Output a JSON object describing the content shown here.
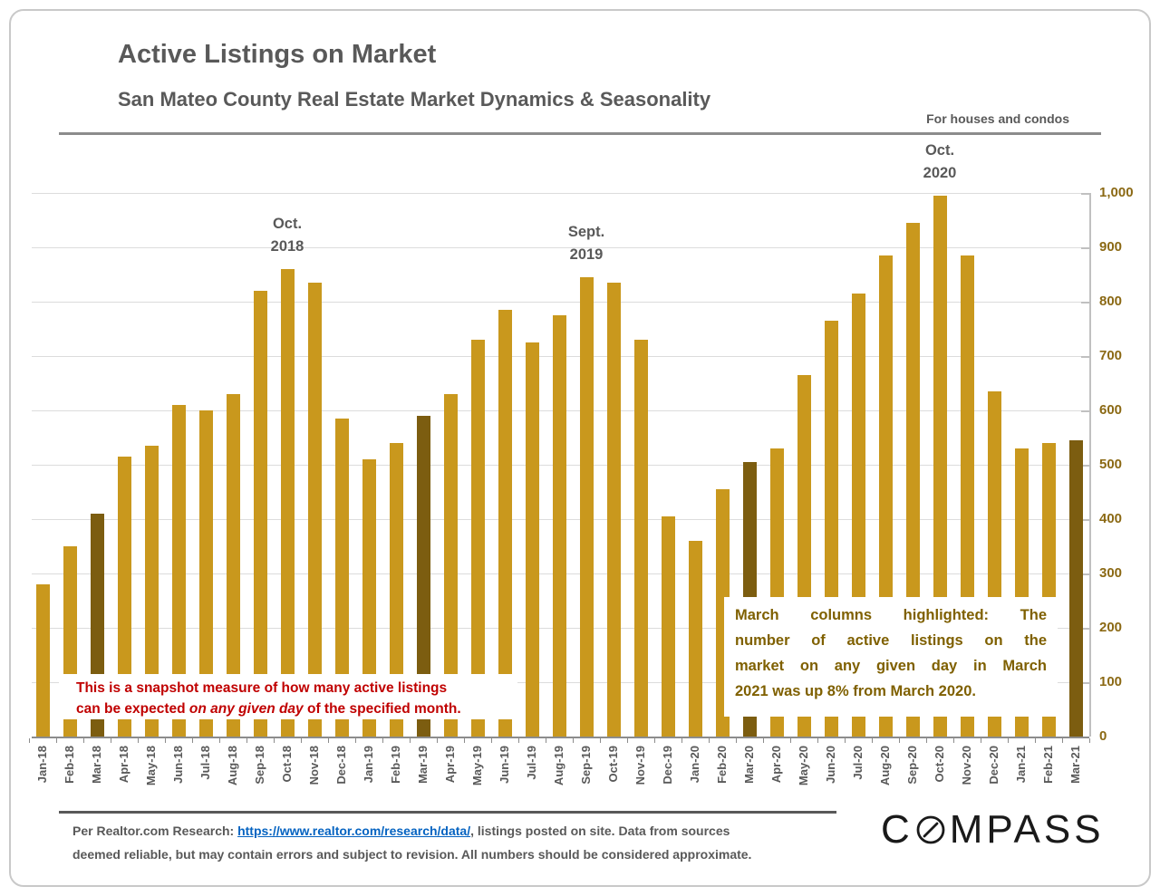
{
  "page": {
    "title": "Active Listings on Market",
    "subtitle": "San Mateo County Real Estate Market Dynamics & Seasonality",
    "tagline": "For houses and condos"
  },
  "chart_data": {
    "type": "bar",
    "title": "Active Listings on Market",
    "subtitle": "San Mateo County Real Estate Market Dynamics & Seasonality",
    "categories": [
      "Jan-18",
      "Feb-18",
      "Mar-18",
      "Apr-18",
      "May-18",
      "Jun-18",
      "Jul-18",
      "Aug-18",
      "Sep-18",
      "Oct-18",
      "Nov-18",
      "Dec-18",
      "Jan-19",
      "Feb-19",
      "Mar-19",
      "Apr-19",
      "May-19",
      "Jun-19",
      "Jul-19",
      "Aug-19",
      "Sep-19",
      "Oct-19",
      "Nov-19",
      "Dec-19",
      "Jan-20",
      "Feb-20",
      "Mar-20",
      "Apr-20",
      "May-20",
      "Jun-20",
      "Jul-20",
      "Aug-20",
      "Sep-20",
      "Oct-20",
      "Nov-20",
      "Dec-20",
      "Jan-21",
      "Feb-21",
      "Mar-21"
    ],
    "values": [
      280,
      350,
      410,
      515,
      535,
      610,
      600,
      630,
      820,
      860,
      835,
      585,
      510,
      540,
      590,
      630,
      730,
      785,
      725,
      775,
      845,
      835,
      730,
      405,
      360,
      455,
      505,
      530,
      665,
      765,
      815,
      885,
      945,
      995,
      885,
      635,
      530,
      540,
      545
    ],
    "highlight_categories": [
      "Mar-18",
      "Mar-19",
      "Mar-20",
      "Mar-21"
    ],
    "bar_color": "#C9981D",
    "highlight_color": "#7C5D10",
    "ylim": [
      0,
      1000
    ],
    "y_ticks": [
      0,
      100,
      200,
      300,
      400,
      500,
      600,
      700,
      800,
      900,
      1000
    ],
    "y_tick_labels": [
      "0",
      "100",
      "200",
      "300",
      "400",
      "500",
      "600",
      "700",
      "800",
      "900",
      "1,000"
    ],
    "y_axis_side": "right",
    "grid": true,
    "legend": false,
    "annotations": [
      {
        "category": "Oct-18",
        "lines": [
          "Oct.",
          "2018"
        ]
      },
      {
        "category": "Sep-19",
        "lines": [
          "Sept.",
          "2019"
        ]
      },
      {
        "category": "Oct-20",
        "lines": [
          "Oct.",
          "2020"
        ]
      }
    ]
  },
  "boxes": {
    "snapshot": {
      "text_color": "#C00000",
      "line1": "This is a snapshot measure of how many active listings",
      "line2_pre": "can be expected ",
      "line2_italic": "on any given day",
      "line2_post": " of the specified month."
    },
    "march": {
      "text_color": "#7F6000",
      "lines": [
        "March columns highlighted: The",
        "number of active listings on the",
        "market on any given day in March",
        "2021 was up 8% from March 2020."
      ]
    }
  },
  "footer": {
    "line1_pre": "Per Realtor.com Research:  ",
    "link": "https://www.realtor.com/research/data/",
    "line1_post": ", listings posted on site. Data from sources",
    "line2": "deemed reliable, but may contain errors and subject to revision. All numbers should be considered approximate.",
    "logo_c": "C",
    "logo_rest": "MPASS"
  }
}
